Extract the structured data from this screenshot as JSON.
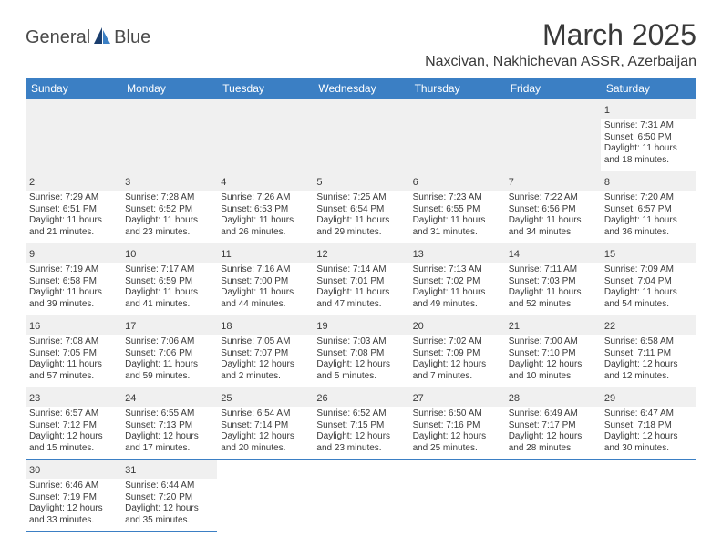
{
  "brand": {
    "name_left": "General",
    "name_right": "Blue"
  },
  "title": "March 2025",
  "location": "Naxcivan, Nakhichevan ASSR, Azerbaijan",
  "colors": {
    "header_bg": "#3b7fc4",
    "header_fg": "#ffffff",
    "daynum_bg": "#f0f0f0",
    "text": "#3a3a3a",
    "rule": "#3b7fc4",
    "logo_dark": "#1a3e6e",
    "logo_light": "#3b7fc4"
  },
  "days_of_week": [
    "Sunday",
    "Monday",
    "Tuesday",
    "Wednesday",
    "Thursday",
    "Friday",
    "Saturday"
  ],
  "weeks": [
    [
      null,
      null,
      null,
      null,
      null,
      null,
      {
        "n": "1",
        "sunrise": "7:31 AM",
        "sunset": "6:50 PM",
        "day_h": "11",
        "day_m": "18"
      }
    ],
    [
      {
        "n": "2",
        "sunrise": "7:29 AM",
        "sunset": "6:51 PM",
        "day_h": "11",
        "day_m": "21"
      },
      {
        "n": "3",
        "sunrise": "7:28 AM",
        "sunset": "6:52 PM",
        "day_h": "11",
        "day_m": "23"
      },
      {
        "n": "4",
        "sunrise": "7:26 AM",
        "sunset": "6:53 PM",
        "day_h": "11",
        "day_m": "26"
      },
      {
        "n": "5",
        "sunrise": "7:25 AM",
        "sunset": "6:54 PM",
        "day_h": "11",
        "day_m": "29"
      },
      {
        "n": "6",
        "sunrise": "7:23 AM",
        "sunset": "6:55 PM",
        "day_h": "11",
        "day_m": "31"
      },
      {
        "n": "7",
        "sunrise": "7:22 AM",
        "sunset": "6:56 PM",
        "day_h": "11",
        "day_m": "34"
      },
      {
        "n": "8",
        "sunrise": "7:20 AM",
        "sunset": "6:57 PM",
        "day_h": "11",
        "day_m": "36"
      }
    ],
    [
      {
        "n": "9",
        "sunrise": "7:19 AM",
        "sunset": "6:58 PM",
        "day_h": "11",
        "day_m": "39"
      },
      {
        "n": "10",
        "sunrise": "7:17 AM",
        "sunset": "6:59 PM",
        "day_h": "11",
        "day_m": "41"
      },
      {
        "n": "11",
        "sunrise": "7:16 AM",
        "sunset": "7:00 PM",
        "day_h": "11",
        "day_m": "44"
      },
      {
        "n": "12",
        "sunrise": "7:14 AM",
        "sunset": "7:01 PM",
        "day_h": "11",
        "day_m": "47"
      },
      {
        "n": "13",
        "sunrise": "7:13 AM",
        "sunset": "7:02 PM",
        "day_h": "11",
        "day_m": "49"
      },
      {
        "n": "14",
        "sunrise": "7:11 AM",
        "sunset": "7:03 PM",
        "day_h": "11",
        "day_m": "52"
      },
      {
        "n": "15",
        "sunrise": "7:09 AM",
        "sunset": "7:04 PM",
        "day_h": "11",
        "day_m": "54"
      }
    ],
    [
      {
        "n": "16",
        "sunrise": "7:08 AM",
        "sunset": "7:05 PM",
        "day_h": "11",
        "day_m": "57"
      },
      {
        "n": "17",
        "sunrise": "7:06 AM",
        "sunset": "7:06 PM",
        "day_h": "11",
        "day_m": "59"
      },
      {
        "n": "18",
        "sunrise": "7:05 AM",
        "sunset": "7:07 PM",
        "day_h": "12",
        "day_m": "2"
      },
      {
        "n": "19",
        "sunrise": "7:03 AM",
        "sunset": "7:08 PM",
        "day_h": "12",
        "day_m": "5"
      },
      {
        "n": "20",
        "sunrise": "7:02 AM",
        "sunset": "7:09 PM",
        "day_h": "12",
        "day_m": "7"
      },
      {
        "n": "21",
        "sunrise": "7:00 AM",
        "sunset": "7:10 PM",
        "day_h": "12",
        "day_m": "10"
      },
      {
        "n": "22",
        "sunrise": "6:58 AM",
        "sunset": "7:11 PM",
        "day_h": "12",
        "day_m": "12"
      }
    ],
    [
      {
        "n": "23",
        "sunrise": "6:57 AM",
        "sunset": "7:12 PM",
        "day_h": "12",
        "day_m": "15"
      },
      {
        "n": "24",
        "sunrise": "6:55 AM",
        "sunset": "7:13 PM",
        "day_h": "12",
        "day_m": "17"
      },
      {
        "n": "25",
        "sunrise": "6:54 AM",
        "sunset": "7:14 PM",
        "day_h": "12",
        "day_m": "20"
      },
      {
        "n": "26",
        "sunrise": "6:52 AM",
        "sunset": "7:15 PM",
        "day_h": "12",
        "day_m": "23"
      },
      {
        "n": "27",
        "sunrise": "6:50 AM",
        "sunset": "7:16 PM",
        "day_h": "12",
        "day_m": "25"
      },
      {
        "n": "28",
        "sunrise": "6:49 AM",
        "sunset": "7:17 PM",
        "day_h": "12",
        "day_m": "28"
      },
      {
        "n": "29",
        "sunrise": "6:47 AM",
        "sunset": "7:18 PM",
        "day_h": "12",
        "day_m": "30"
      }
    ],
    [
      {
        "n": "30",
        "sunrise": "6:46 AM",
        "sunset": "7:19 PM",
        "day_h": "12",
        "day_m": "33"
      },
      {
        "n": "31",
        "sunrise": "6:44 AM",
        "sunset": "7:20 PM",
        "day_h": "12",
        "day_m": "35"
      },
      null,
      null,
      null,
      null,
      null
    ]
  ],
  "labels": {
    "sunrise": "Sunrise:",
    "sunset": "Sunset:",
    "daylight": "Daylight:",
    "hours": "hours",
    "and": "and",
    "minutes": "minutes."
  }
}
